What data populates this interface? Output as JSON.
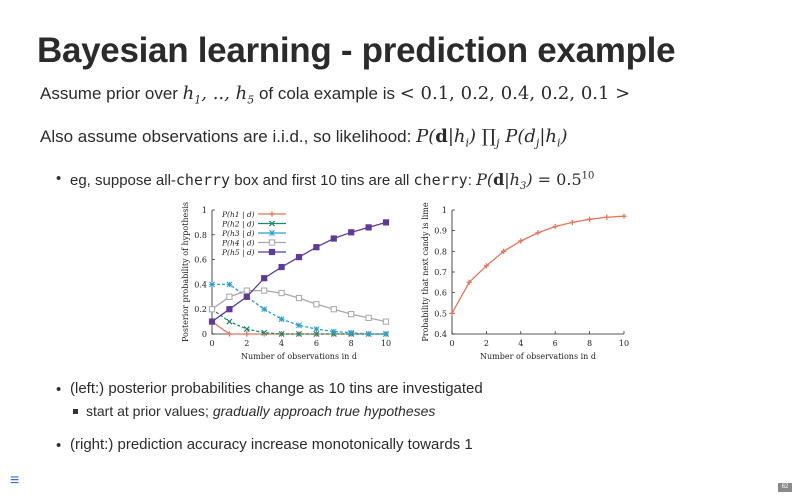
{
  "title": "Bayesian learning - prediction example",
  "line1": {
    "text": "Assume prior over",
    "hyp_range": "h1, .., h5",
    "of_text": "of cola example is",
    "prior": "< 0.1, 0.2, 0.4, 0.2, 0.1 >"
  },
  "line2": {
    "text": "Also assume observations are i.i.d., so likelihood:",
    "formula": "P(d|hi) ∏j P(dj|hi)"
  },
  "bullet1": {
    "pre": "eg, suppose all-",
    "code1": "cherry",
    "mid": "box and first 10 tins are all",
    "code2": "cherry",
    "colon": ":",
    "formula": "P(d|h3) = 0.5^10"
  },
  "bullet2": {
    "pre": "(left:) posterior probabilities change as",
    "num": "10",
    "post": "tins are investigated"
  },
  "sub_bullet": {
    "pre": "start at prior values;",
    "em": "gradually approach true hypotheses"
  },
  "bullet3": {
    "pre": "(right:) prediction accuracy increase monotonically towards",
    "num": "1"
  },
  "menu_icon": "≡",
  "page_number": "62",
  "chart_data": [
    {
      "type": "line",
      "xlabel": "Number of observations in d",
      "ylabel": "Posterior probability of hypothesis",
      "xlim": [
        0,
        10
      ],
      "ylim": [
        0,
        1
      ],
      "xticks": [
        "0",
        "2",
        "4",
        "6",
        "8",
        "10"
      ],
      "yticks": [
        "0",
        "0.2",
        "0.4",
        "0.6",
        "0.8",
        "1"
      ],
      "x": [
        0,
        1,
        2,
        3,
        4,
        5,
        6,
        7,
        8,
        9,
        10
      ],
      "legend_position": "top-left",
      "series": [
        {
          "name": "P(h1 | d)",
          "color": "#e8755a",
          "marker": "plus",
          "values": [
            0.1,
            0.0,
            0.0,
            0.0,
            0.0,
            0.0,
            0.0,
            0.0,
            0.0,
            0.0,
            0.0
          ]
        },
        {
          "name": "P(h2 | d)",
          "color": "#1b8a6b",
          "marker": "x",
          "values": [
            0.2,
            0.1,
            0.04,
            0.01,
            0.0,
            0.0,
            0.0,
            0.0,
            0.0,
            0.0,
            0.0
          ]
        },
        {
          "name": "P(h3 | d)",
          "color": "#2b9fd0",
          "marker": "star",
          "values": [
            0.4,
            0.4,
            0.3,
            0.2,
            0.12,
            0.07,
            0.04,
            0.02,
            0.01,
            0.0,
            0.0
          ]
        },
        {
          "name": "P(h4 | d)",
          "color": "#a8a8a8",
          "marker": "square-open",
          "values": [
            0.2,
            0.3,
            0.35,
            0.35,
            0.33,
            0.29,
            0.24,
            0.2,
            0.16,
            0.13,
            0.1
          ]
        },
        {
          "name": "P(h5 | d)",
          "color": "#5e3b9a",
          "marker": "square",
          "values": [
            0.1,
            0.2,
            0.3,
            0.45,
            0.54,
            0.62,
            0.7,
            0.77,
            0.82,
            0.86,
            0.9
          ]
        }
      ]
    },
    {
      "type": "line",
      "xlabel": "Number of observations in d",
      "ylabel": "Probability that next candy is lime",
      "xlim": [
        0,
        10
      ],
      "ylim": [
        0.4,
        1
      ],
      "xticks": [
        "0",
        "2",
        "4",
        "6",
        "8",
        "10"
      ],
      "yticks": [
        "0.4",
        "0.5",
        "0.6",
        "0.7",
        "0.8",
        "0.9",
        "1"
      ],
      "x": [
        0,
        1,
        2,
        3,
        4,
        5,
        6,
        7,
        8,
        9,
        10
      ],
      "series": [
        {
          "color": "#e8755a",
          "marker": "plus",
          "values": [
            0.5,
            0.65,
            0.73,
            0.8,
            0.85,
            0.89,
            0.92,
            0.94,
            0.955,
            0.965,
            0.97
          ]
        }
      ]
    }
  ]
}
